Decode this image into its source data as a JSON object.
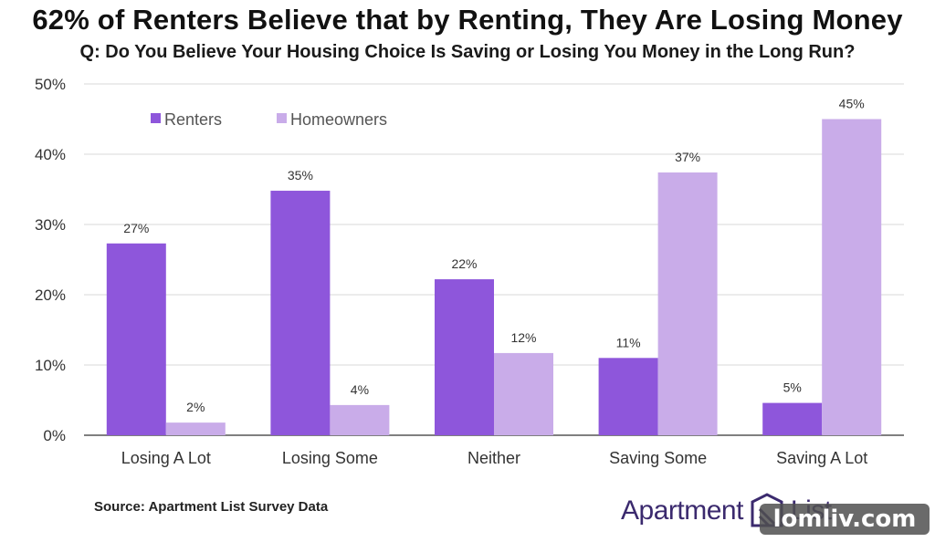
{
  "title": "62% of Renters Believe that by Renting, They Are Losing Money",
  "subtitle": "Q: Do You Believe Your Housing Choice Is Saving or Losing You Money in the Long Run?",
  "source": "Source: Apartment List Survey Data",
  "brand": {
    "left": "Apartment",
    "right": "List"
  },
  "watermark": "lomliv.com",
  "colors": {
    "renters": "#8e56db",
    "homeowners": "#c9ace9",
    "grid": "#d9d9d9",
    "axis": "#333333"
  },
  "chart_data": {
    "type": "bar",
    "categories": [
      "Losing A Lot",
      "Losing Some",
      "Neither",
      "Saving Some",
      "Saving A Lot"
    ],
    "series": [
      {
        "name": "Renters",
        "values": [
          27.3,
          34.8,
          22.2,
          11.0,
          4.6
        ],
        "labels": [
          "27%",
          "35%",
          "22%",
          "11%",
          "5%"
        ]
      },
      {
        "name": "Homeowners",
        "values": [
          1.8,
          4.3,
          11.7,
          37.4,
          45.0
        ],
        "labels": [
          "2%",
          "4%",
          "12%",
          "37%",
          "45%"
        ]
      }
    ],
    "y_ticks": [
      "0%",
      "10%",
      "20%",
      "30%",
      "40%",
      "50%"
    ],
    "ylim": [
      0,
      50
    ],
    "grid": true,
    "legend": "top-left"
  }
}
